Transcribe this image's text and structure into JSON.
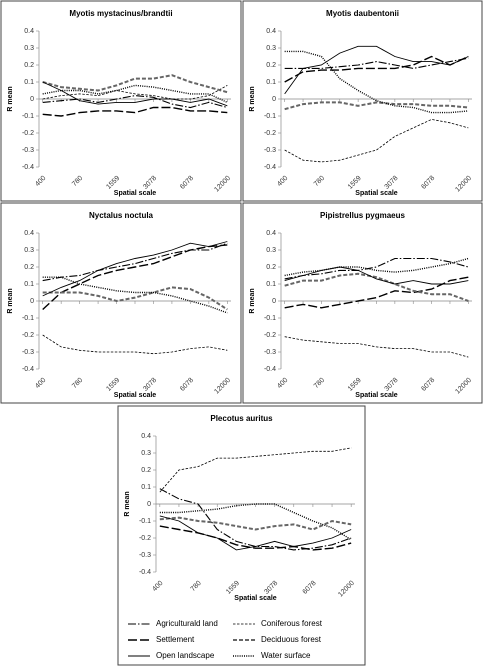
{
  "chart_data": [
    {
      "type": "line",
      "title": "Myotis mystacinus/brandtii",
      "y_label": "R mean",
      "x_label": "Spatial scale",
      "categories": [
        "400",
        null,
        "780",
        null,
        "1559",
        null,
        "3078",
        null,
        "6078",
        null,
        "12000"
      ],
      "ylim": [
        -0.4,
        0.4
      ],
      "yticks": [
        -0.4,
        -0.3,
        -0.2,
        -0.1,
        0,
        0.1,
        0.2,
        0.3,
        0.4
      ],
      "series": [
        {
          "name": "Agriculturald land",
          "color": "#000000",
          "dash": "dashdot",
          "values": [
            -0.02,
            -0.01,
            0.0,
            -0.02,
            0.0,
            0.02,
            0.01,
            -0.03,
            -0.05,
            -0.02,
            -0.05
          ]
        },
        {
          "name": "Coniferous forest",
          "color": "#000000",
          "dash": "short",
          "values": [
            0.0,
            0.02,
            0.03,
            0.02,
            0.05,
            0.03,
            0.02,
            0.0,
            0.0,
            0.02,
            0.08
          ]
        },
        {
          "name": "Settlement",
          "color": "#000000",
          "dash": "long",
          "values": [
            -0.09,
            -0.1,
            -0.08,
            -0.07,
            -0.07,
            -0.08,
            -0.05,
            -0.05,
            -0.07,
            -0.07,
            -0.08
          ]
        },
        {
          "name": "Deciduous forest",
          "color": "#666666",
          "dash": "thick",
          "values": [
            0.1,
            0.07,
            0.06,
            0.05,
            0.08,
            0.12,
            0.12,
            0.14,
            0.1,
            0.07,
            0.04
          ]
        },
        {
          "name": "Open landscape",
          "color": "#000000",
          "dash": "solid",
          "values": [
            0.1,
            0.05,
            -0.01,
            -0.03,
            -0.02,
            -0.02,
            0.0,
            0.0,
            -0.02,
            0.0,
            -0.04
          ]
        },
        {
          "name": "Water surface",
          "color": "#000000",
          "dash": "dotted",
          "values": [
            0.03,
            0.05,
            0.05,
            0.03,
            0.05,
            0.08,
            0.07,
            0.05,
            0.03,
            0.03,
            -0.02
          ]
        }
      ]
    },
    {
      "type": "line",
      "title": "Myotis daubentonii",
      "y_label": "R mean",
      "x_label": "Spatial scale",
      "categories": [
        "400",
        null,
        "780",
        null,
        "1559",
        null,
        "3078",
        null,
        "6078",
        null,
        "12000"
      ],
      "ylim": [
        -0.4,
        0.4
      ],
      "yticks": [
        -0.4,
        -0.3,
        -0.2,
        -0.1,
        0,
        0.1,
        0.2,
        0.3,
        0.4
      ],
      "series": [
        {
          "name": "Agriculturald land",
          "color": "#000000",
          "dash": "dashdot",
          "values": [
            0.18,
            0.18,
            0.18,
            0.19,
            0.2,
            0.22,
            0.2,
            0.18,
            0.2,
            0.22,
            0.24
          ]
        },
        {
          "name": "Coniferous forest",
          "color": "#000000",
          "dash": "short",
          "values": [
            -0.3,
            -0.36,
            -0.37,
            -0.36,
            -0.33,
            -0.3,
            -0.22,
            -0.17,
            -0.12,
            -0.14,
            -0.17
          ]
        },
        {
          "name": "Settlement",
          "color": "#000000",
          "dash": "long",
          "values": [
            0.1,
            0.16,
            0.17,
            0.17,
            0.18,
            0.18,
            0.18,
            0.2,
            0.25,
            0.2,
            0.25
          ]
        },
        {
          "name": "Deciduous forest",
          "color": "#666666",
          "dash": "thick",
          "values": [
            -0.06,
            -0.03,
            -0.02,
            -0.02,
            -0.04,
            -0.02,
            -0.03,
            -0.03,
            -0.04,
            -0.04,
            -0.05
          ]
        },
        {
          "name": "Open landscape",
          "color": "#000000",
          "dash": "solid",
          "values": [
            0.03,
            0.18,
            0.2,
            0.27,
            0.31,
            0.31,
            0.25,
            0.22,
            0.22,
            0.2,
            0.25
          ]
        },
        {
          "name": "Water surface",
          "color": "#000000",
          "dash": "dotted",
          "values": [
            0.28,
            0.28,
            0.25,
            0.12,
            0.05,
            -0.01,
            -0.04,
            -0.05,
            -0.08,
            -0.08,
            -0.07
          ]
        }
      ]
    },
    {
      "type": "line",
      "title": "Nyctalus noctula",
      "y_label": "R mean",
      "x_label": "Spatial scale",
      "categories": [
        "400",
        null,
        "780",
        null,
        "1559",
        null,
        "3078",
        null,
        "6078",
        null,
        "12000"
      ],
      "ylim": [
        -0.4,
        0.4
      ],
      "yticks": [
        -0.4,
        -0.3,
        -0.2,
        -0.1,
        0,
        0.1,
        0.2,
        0.3,
        0.4
      ],
      "series": [
        {
          "name": "Agriculturald land",
          "color": "#000000",
          "dash": "dashdot",
          "values": [
            0.12,
            0.14,
            0.15,
            0.18,
            0.2,
            0.22,
            0.25,
            0.28,
            0.3,
            0.3,
            0.34
          ]
        },
        {
          "name": "Coniferous forest",
          "color": "#000000",
          "dash": "short",
          "values": [
            -0.2,
            -0.27,
            -0.29,
            -0.3,
            -0.3,
            -0.3,
            -0.31,
            -0.3,
            -0.28,
            -0.27,
            -0.29
          ]
        },
        {
          "name": "Settlement",
          "color": "#000000",
          "dash": "long",
          "values": [
            -0.05,
            0.05,
            0.1,
            0.15,
            0.18,
            0.2,
            0.22,
            0.26,
            0.3,
            0.32,
            0.33
          ]
        },
        {
          "name": "Deciduous forest",
          "color": "#666666",
          "dash": "thick",
          "values": [
            0.05,
            0.05,
            0.05,
            0.03,
            0.0,
            0.02,
            0.05,
            0.08,
            0.07,
            0.02,
            -0.05
          ]
        },
        {
          "name": "Open landscape",
          "color": "#000000",
          "dash": "solid",
          "values": [
            0.03,
            0.08,
            0.12,
            0.18,
            0.22,
            0.25,
            0.27,
            0.3,
            0.34,
            0.32,
            0.35
          ]
        },
        {
          "name": "Water surface",
          "color": "#000000",
          "dash": "dotted",
          "values": [
            0.14,
            0.14,
            0.1,
            0.08,
            0.06,
            0.05,
            0.05,
            0.03,
            0.0,
            -0.03,
            -0.07
          ]
        }
      ]
    },
    {
      "type": "line",
      "title": "Pipistrellus pygmaeus",
      "y_label": "R mean",
      "x_label": "Spatial scale",
      "categories": [
        "400",
        null,
        "780",
        null,
        "1559",
        null,
        "3078",
        null,
        "6078",
        null,
        "12000"
      ],
      "ylim": [
        -0.4,
        0.4
      ],
      "yticks": [
        -0.4,
        -0.3,
        -0.2,
        -0.1,
        0,
        0.1,
        0.2,
        0.3,
        0.4
      ],
      "series": [
        {
          "name": "Agriculturald land",
          "color": "#000000",
          "dash": "dashdot",
          "values": [
            0.13,
            0.15,
            0.16,
            0.18,
            0.18,
            0.2,
            0.25,
            0.25,
            0.25,
            0.23,
            0.2
          ]
        },
        {
          "name": "Coniferous forest",
          "color": "#000000",
          "dash": "short",
          "values": [
            -0.21,
            -0.23,
            -0.24,
            -0.25,
            -0.25,
            -0.27,
            -0.28,
            -0.28,
            -0.3,
            -0.3,
            -0.33
          ]
        },
        {
          "name": "Settlement",
          "color": "#000000",
          "dash": "long",
          "values": [
            -0.04,
            -0.02,
            -0.04,
            -0.02,
            0.0,
            0.02,
            0.06,
            0.05,
            0.07,
            0.12,
            0.14
          ]
        },
        {
          "name": "Deciduous forest",
          "color": "#666666",
          "dash": "thick",
          "values": [
            0.09,
            0.12,
            0.12,
            0.15,
            0.16,
            0.14,
            0.1,
            0.06,
            0.04,
            0.04,
            0.0
          ]
        },
        {
          "name": "Open landscape",
          "color": "#000000",
          "dash": "solid",
          "values": [
            0.12,
            0.15,
            0.18,
            0.2,
            0.18,
            0.13,
            0.1,
            0.12,
            0.1,
            0.1,
            0.12
          ]
        },
        {
          "name": "Water surface",
          "color": "#000000",
          "dash": "dotted",
          "values": [
            0.15,
            0.17,
            0.18,
            0.2,
            0.2,
            0.18,
            0.17,
            0.18,
            0.2,
            0.22,
            0.25
          ]
        }
      ]
    },
    {
      "type": "line",
      "title": "Plecotus auritus",
      "y_label": "R mean",
      "x_label": "Spatial scale",
      "legend": "bottom",
      "categories": [
        "400",
        null,
        "780",
        null,
        "1559",
        null,
        "3078",
        null,
        "6078",
        null,
        "12000"
      ],
      "ylim": [
        -0.4,
        0.4
      ],
      "yticks": [
        -0.4,
        -0.3,
        -0.2,
        -0.1,
        0,
        0.1,
        0.2,
        0.3,
        0.4
      ],
      "series": [
        {
          "name": "Agriculturald land",
          "color": "#000000",
          "dash": "dashdot",
          "values": [
            0.09,
            0.03,
            0.0,
            -0.15,
            -0.22,
            -0.25,
            -0.25,
            -0.27,
            -0.26,
            -0.24,
            -0.2
          ]
        },
        {
          "name": "Coniferous forest",
          "color": "#000000",
          "dash": "short",
          "values": [
            0.07,
            0.2,
            0.22,
            0.27,
            0.27,
            0.28,
            0.29,
            0.3,
            0.31,
            0.31,
            0.33
          ]
        },
        {
          "name": "Settlement",
          "color": "#000000",
          "dash": "long",
          "values": [
            -0.13,
            -0.15,
            -0.17,
            -0.2,
            -0.24,
            -0.26,
            -0.26,
            -0.25,
            -0.27,
            -0.26,
            -0.23
          ]
        },
        {
          "name": "Deciduous forest",
          "color": "#666666",
          "dash": "thick",
          "values": [
            -0.09,
            -0.08,
            -0.1,
            -0.11,
            -0.13,
            -0.15,
            -0.13,
            -0.12,
            -0.15,
            -0.1,
            -0.12
          ]
        },
        {
          "name": "Open landscape",
          "color": "#000000",
          "dash": "solid",
          "values": [
            -0.07,
            -0.1,
            -0.17,
            -0.2,
            -0.27,
            -0.25,
            -0.22,
            -0.25,
            -0.23,
            -0.2,
            -0.15
          ]
        },
        {
          "name": "Water surface",
          "color": "#000000",
          "dash": "dotted",
          "values": [
            -0.05,
            -0.05,
            -0.04,
            -0.03,
            -0.01,
            0.0,
            0.0,
            -0.05,
            -0.1,
            -0.14,
            -0.21
          ]
        }
      ]
    }
  ]
}
